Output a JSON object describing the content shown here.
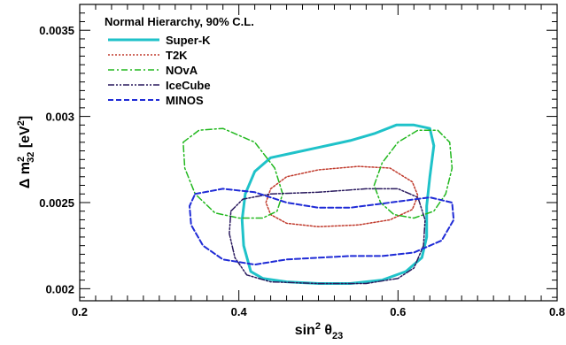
{
  "chart_data": {
    "type": "line",
    "title": "Normal Hierarchy, 90% C.L.",
    "xlabel": "sin² θ23",
    "ylabel": "Δ m²32 [eV²]",
    "xlim": [
      0.2,
      0.8
    ],
    "ylim": [
      0.00193,
      0.00365
    ],
    "xticks": [
      {
        "value": 0.2,
        "label": "0.2"
      },
      {
        "value": 0.4,
        "label": "0.4"
      },
      {
        "value": 0.6,
        "label": "0.6"
      },
      {
        "value": 0.8,
        "label": "0.8"
      }
    ],
    "yticks": [
      {
        "value": 0.002,
        "label": "0.002"
      },
      {
        "value": 0.0025,
        "label": "0.0025"
      },
      {
        "value": 0.003,
        "label": "0.003"
      },
      {
        "value": 0.0035,
        "label": "0.0035"
      }
    ],
    "grid": false,
    "legend_position": "top-left",
    "series": [
      {
        "name": "Super-K",
        "color": "#1fc2c9",
        "dash": "solid",
        "width": 3,
        "points": [
          [
            0.415,
            0.0021
          ],
          [
            0.43,
            0.00206
          ],
          [
            0.46,
            0.00204
          ],
          [
            0.5,
            0.00203
          ],
          [
            0.54,
            0.00203
          ],
          [
            0.58,
            0.00205
          ],
          [
            0.61,
            0.0021
          ],
          [
            0.63,
            0.00218
          ],
          [
            0.636,
            0.0023
          ],
          [
            0.636,
            0.00248
          ],
          [
            0.64,
            0.00265
          ],
          [
            0.645,
            0.00283
          ],
          [
            0.64,
            0.00293
          ],
          [
            0.62,
            0.00295
          ],
          [
            0.598,
            0.00295
          ],
          [
            0.57,
            0.0029
          ],
          [
            0.54,
            0.00286
          ],
          [
            0.5,
            0.00282
          ],
          [
            0.47,
            0.00279
          ],
          [
            0.44,
            0.00276
          ],
          [
            0.42,
            0.00268
          ],
          [
            0.408,
            0.00255
          ],
          [
            0.404,
            0.0024
          ],
          [
            0.406,
            0.00225
          ],
          [
            0.415,
            0.0021
          ]
        ]
      },
      {
        "name": "T2K",
        "color": "#c0392b",
        "dash": "dot",
        "width": 1.5,
        "points": [
          [
            0.44,
            0.00258
          ],
          [
            0.46,
            0.00265
          ],
          [
            0.5,
            0.00269
          ],
          [
            0.55,
            0.00271
          ],
          [
            0.59,
            0.0027
          ],
          [
            0.618,
            0.00262
          ],
          [
            0.625,
            0.00254
          ],
          [
            0.618,
            0.00246
          ],
          [
            0.59,
            0.0024
          ],
          [
            0.55,
            0.00237
          ],
          [
            0.5,
            0.00236
          ],
          [
            0.46,
            0.00238
          ],
          [
            0.44,
            0.00243
          ],
          [
            0.434,
            0.0025
          ],
          [
            0.44,
            0.00258
          ]
        ]
      },
      {
        "name": "NOvA",
        "color": "#22b81f",
        "dash": "dashdot",
        "width": 1.5,
        "points": [
          [
            0.33,
            0.00285
          ],
          [
            0.35,
            0.00292
          ],
          [
            0.38,
            0.00293
          ],
          [
            0.42,
            0.00285
          ],
          [
            0.445,
            0.0027
          ],
          [
            0.455,
            0.00255
          ],
          [
            0.448,
            0.00245
          ],
          [
            0.43,
            0.00241
          ],
          [
            0.4,
            0.00241
          ],
          [
            0.37,
            0.00244
          ],
          [
            0.345,
            0.00255
          ],
          [
            0.332,
            0.0027
          ],
          [
            0.33,
            0.00285
          ],
          null,
          [
            0.57,
            0.0026
          ],
          [
            0.58,
            0.00273
          ],
          [
            0.6,
            0.00285
          ],
          [
            0.625,
            0.00292
          ],
          [
            0.65,
            0.00292
          ],
          [
            0.665,
            0.00285
          ],
          [
            0.668,
            0.0027
          ],
          [
            0.66,
            0.00255
          ],
          [
            0.645,
            0.00245
          ],
          [
            0.62,
            0.00241
          ],
          [
            0.595,
            0.00243
          ],
          [
            0.578,
            0.0025
          ],
          [
            0.57,
            0.0026
          ]
        ]
      },
      {
        "name": "IceCube",
        "color": "#2a1a5e",
        "dash": "dashdotdot",
        "width": 1.5,
        "points": [
          [
            0.39,
            0.00245
          ],
          [
            0.405,
            0.00252
          ],
          [
            0.44,
            0.00255
          ],
          [
            0.5,
            0.00256
          ],
          [
            0.56,
            0.00258
          ],
          [
            0.6,
            0.00258
          ],
          [
            0.625,
            0.00253
          ],
          [
            0.634,
            0.0024
          ],
          [
            0.632,
            0.00225
          ],
          [
            0.62,
            0.00212
          ],
          [
            0.6,
            0.00206
          ],
          [
            0.56,
            0.00203
          ],
          [
            0.5,
            0.00203
          ],
          [
            0.44,
            0.00204
          ],
          [
            0.41,
            0.00208
          ],
          [
            0.395,
            0.00218
          ],
          [
            0.388,
            0.00232
          ],
          [
            0.39,
            0.00245
          ]
        ]
      },
      {
        "name": "MINOS",
        "color": "#1f2bd6",
        "dash": "dash",
        "width": 2,
        "points": [
          [
            0.345,
            0.00255
          ],
          [
            0.38,
            0.00258
          ],
          [
            0.42,
            0.00256
          ],
          [
            0.46,
            0.0025
          ],
          [
            0.5,
            0.00247
          ],
          [
            0.54,
            0.00247
          ],
          [
            0.59,
            0.0025
          ],
          [
            0.64,
            0.00253
          ],
          [
            0.668,
            0.0025
          ],
          [
            0.67,
            0.0024
          ],
          [
            0.655,
            0.00228
          ],
          [
            0.62,
            0.00221
          ],
          [
            0.58,
            0.00219
          ],
          [
            0.54,
            0.00219
          ],
          [
            0.5,
            0.00218
          ],
          [
            0.46,
            0.00217
          ],
          [
            0.42,
            0.00214
          ],
          [
            0.38,
            0.00217
          ],
          [
            0.355,
            0.00225
          ],
          [
            0.34,
            0.00237
          ],
          [
            0.338,
            0.00248
          ],
          [
            0.345,
            0.00255
          ]
        ]
      }
    ]
  }
}
